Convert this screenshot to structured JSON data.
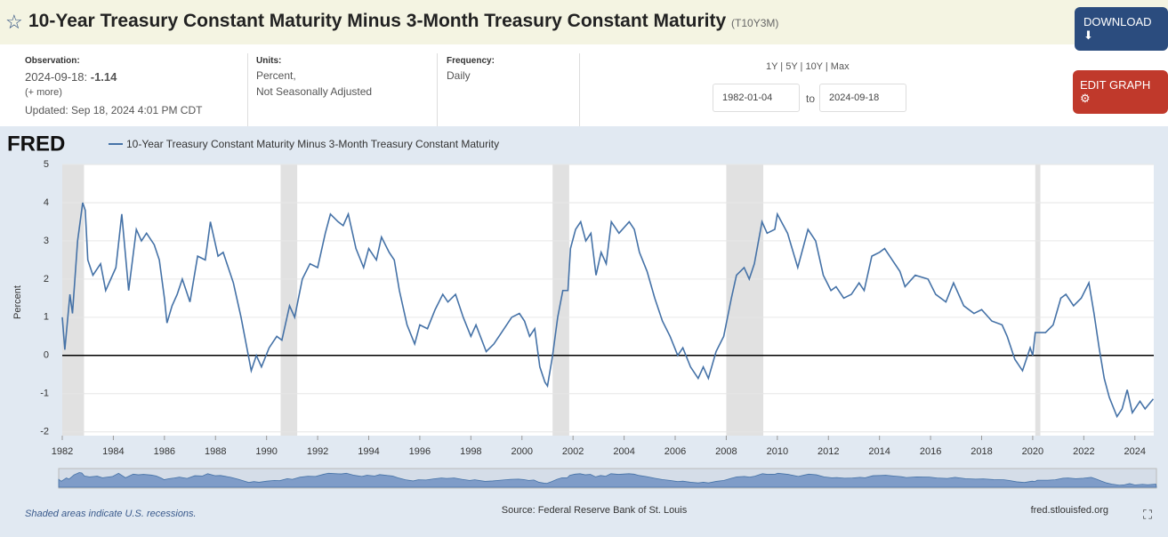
{
  "header": {
    "title": "10-Year Treasury Constant Maturity Minus 3-Month Treasury Constant Maturity",
    "code": "(T10Y3M)",
    "download": "DOWNLOAD",
    "edit": "EDIT GRAPH"
  },
  "info": {
    "observation_label": "Observation:",
    "observation_date": "2024-09-18:",
    "observation_value": -1.14,
    "more": "(+ more)",
    "updated": "Updated: Sep 18, 2024 4:01 PM CDT",
    "units_label": "Units:",
    "units_1": "Percent,",
    "units_2": "Not Seasonally Adjusted",
    "frequency_label": "Frequency:",
    "frequency": "Daily",
    "ranges": "1Y | 5Y | 10Y | Max",
    "start": "1982-01-04",
    "to": "to",
    "end": "2024-09-18"
  },
  "chart_data": {
    "type": "line",
    "logo": "FRED",
    "y_label": "Percent",
    "series": [
      {
        "name": "10-Year Treasury Constant Maturity Minus 3-Month Treasury Constant Maturity",
        "color": "#4572a7",
        "x": [
          1982.0,
          1982.1,
          1982.3,
          1982.4,
          1982.6,
          1982.8,
          1982.9,
          1983.0,
          1983.2,
          1983.5,
          1983.7,
          1983.9,
          1984.1,
          1984.33,
          1984.6,
          1984.9,
          1985.1,
          1985.3,
          1985.6,
          1985.8,
          1986.0,
          1986.1,
          1986.3,
          1986.5,
          1986.7,
          1987.0,
          1987.3,
          1987.6,
          1987.8,
          1988.1,
          1988.3,
          1988.7,
          1989.0,
          1989.2,
          1989.4,
          1989.6,
          1989.8,
          1990.1,
          1990.4,
          1990.6,
          1990.9,
          1991.1,
          1991.4,
          1991.7,
          1992.0,
          1992.3,
          1992.5,
          1992.8,
          1993.0,
          1993.2,
          1993.5,
          1993.8,
          1994.0,
          1994.3,
          1994.5,
          1994.8,
          1995.0,
          1995.2,
          1995.5,
          1995.8,
          1996.0,
          1996.3,
          1996.6,
          1996.9,
          1997.1,
          1997.4,
          1997.7,
          1998.0,
          1998.2,
          1998.6,
          1998.9,
          1999.2,
          1999.6,
          1999.9,
          2000.1,
          2000.3,
          2000.5,
          2000.7,
          2000.9,
          2001.0,
          2001.2,
          2001.4,
          2001.6,
          2001.8,
          2001.9,
          2002.1,
          2002.3,
          2002.5,
          2002.7,
          2002.9,
          2003.1,
          2003.3,
          2003.5,
          2003.8,
          2004.2,
          2004.4,
          2004.6,
          2004.9,
          2005.2,
          2005.5,
          2005.8,
          2006.1,
          2006.3,
          2006.6,
          2006.9,
          2007.1,
          2007.3,
          2007.6,
          2007.9,
          2008.2,
          2008.4,
          2008.7,
          2008.9,
          2009.1,
          2009.4,
          2009.6,
          2009.9,
          2010.0,
          2010.4,
          2010.8,
          2011.0,
          2011.2,
          2011.5,
          2011.8,
          2012.1,
          2012.3,
          2012.6,
          2012.9,
          2013.2,
          2013.4,
          2013.7,
          2014.0,
          2014.2,
          2014.5,
          2014.8,
          2015.0,
          2015.4,
          2015.9,
          2016.2,
          2016.6,
          2016.9,
          2017.3,
          2017.7,
          2018.0,
          2018.4,
          2018.8,
          2019.0,
          2019.3,
          2019.6,
          2019.9,
          2020.0,
          2020.1,
          2020.5,
          2020.8,
          2021.1,
          2021.3,
          2021.6,
          2021.9,
          2022.2,
          2022.4,
          2022.6,
          2022.8,
          2023.0,
          2023.3,
          2023.5,
          2023.7,
          2023.9,
          2024.2,
          2024.4,
          2024.72
        ],
        "values": [
          1.0,
          0.15,
          1.6,
          1.1,
          3.0,
          4.0,
          3.8,
          2.5,
          2.1,
          2.4,
          1.7,
          2.0,
          2.3,
          3.7,
          1.7,
          3.3,
          3.0,
          3.2,
          2.9,
          2.5,
          1.5,
          0.85,
          1.3,
          1.6,
          2.0,
          1.4,
          2.6,
          2.5,
          3.5,
          2.6,
          2.7,
          1.9,
          1.0,
          0.3,
          -0.4,
          0.0,
          -0.3,
          0.2,
          0.5,
          0.4,
          1.3,
          1.0,
          2.0,
          2.4,
          2.3,
          3.2,
          3.7,
          3.5,
          3.4,
          3.7,
          2.8,
          2.3,
          2.8,
          2.5,
          3.1,
          2.7,
          2.5,
          1.7,
          0.8,
          0.3,
          0.8,
          0.7,
          1.2,
          1.6,
          1.4,
          1.6,
          1.0,
          0.5,
          0.8,
          0.1,
          0.3,
          0.6,
          1.0,
          1.1,
          0.9,
          0.5,
          0.7,
          -0.3,
          -0.7,
          -0.8,
          0.0,
          1.0,
          1.7,
          1.7,
          2.8,
          3.3,
          3.5,
          3.0,
          3.2,
          2.1,
          2.7,
          2.4,
          3.5,
          3.2,
          3.5,
          3.3,
          2.7,
          2.2,
          1.5,
          0.9,
          0.5,
          0.0,
          0.2,
          -0.3,
          -0.6,
          -0.3,
          -0.6,
          0.1,
          0.5,
          1.5,
          2.1,
          2.3,
          2.0,
          2.4,
          3.5,
          3.2,
          3.3,
          3.7,
          3.2,
          2.3,
          2.8,
          3.3,
          3.0,
          2.1,
          1.7,
          1.8,
          1.5,
          1.6,
          1.9,
          1.7,
          2.6,
          2.7,
          2.8,
          2.5,
          2.2,
          1.8,
          2.1,
          2.0,
          1.6,
          1.4,
          1.9,
          1.3,
          1.1,
          1.2,
          0.9,
          0.8,
          0.5,
          -0.1,
          -0.4,
          0.2,
          0.0,
          0.6,
          0.6,
          0.8,
          1.5,
          1.6,
          1.3,
          1.5,
          1.9,
          1.1,
          0.2,
          -0.6,
          -1.1,
          -1.6,
          -1.4,
          -0.9,
          -1.5,
          -1.2,
          -1.4,
          -1.14
        ]
      }
    ],
    "recessions": [
      [
        1982.0,
        1982.85
      ],
      [
        1990.55,
        1991.2
      ],
      [
        2001.2,
        2001.85
      ],
      [
        2008.0,
        2009.45
      ],
      [
        2020.1,
        2020.3
      ]
    ],
    "hline": 0,
    "xlim": [
      1982,
      2024.74
    ],
    "xticks": [
      1982,
      1984,
      1986,
      1988,
      1990,
      1992,
      1994,
      1996,
      1998,
      2000,
      2002,
      2004,
      2006,
      2008,
      2010,
      2012,
      2014,
      2016,
      2018,
      2020,
      2022,
      2024
    ],
    "ylim": [
      -2.1,
      5
    ],
    "yticks": [
      -2,
      -1,
      0,
      1,
      2,
      3,
      4,
      5
    ],
    "grid": true,
    "note": "Shaded areas indicate U.S. recessions.",
    "source": "Source: Federal Reserve Bank of St. Louis",
    "site": "fred.stlouisfed.org"
  }
}
